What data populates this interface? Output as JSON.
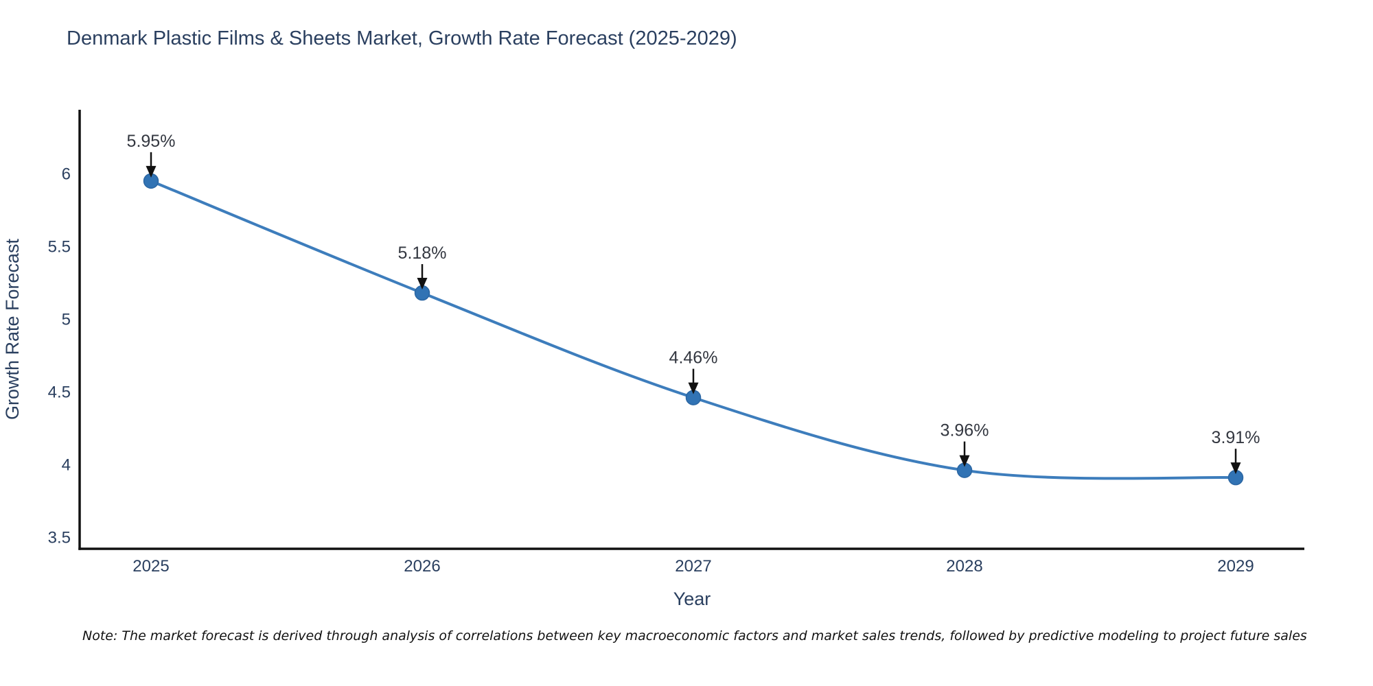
{
  "title": "Denmark Plastic Films & Sheets Market, Growth Rate Forecast (2025-2029)",
  "note": "Note: The market forecast is derived through analysis of correlations between key macroeconomic factors and market sales trends, followed by predictive modeling to project future sales",
  "chart_data": {
    "type": "line",
    "title": "Denmark Plastic Films & Sheets Market, Growth Rate Forecast (2025-2029)",
    "x": [
      2025,
      2026,
      2027,
      2028,
      2029
    ],
    "series": [
      {
        "name": "Growth Rate Forecast",
        "values": [
          5.95,
          5.18,
          4.46,
          3.96,
          3.91
        ]
      }
    ],
    "point_labels": [
      "5.95%",
      "5.18%",
      "4.46%",
      "3.96%",
      "3.91%"
    ],
    "xlabel": "Year",
    "ylabel": "Growth Rate Forecast",
    "yticks": [
      3.5,
      4,
      4.5,
      5,
      5.5,
      6
    ],
    "ylim": [
      3.42,
      6.44
    ],
    "grid": false,
    "legend": "none",
    "line_shape": "spline",
    "line_color": "#3d7dbc",
    "marker_color": "#3173b4",
    "marker_edge_color": "#2b66a3",
    "axis_color": "#111111",
    "text_color": "#2a3f5f",
    "annotation_color": "#333740",
    "arrow_color": "#111111",
    "background_color": "#ffffff"
  }
}
